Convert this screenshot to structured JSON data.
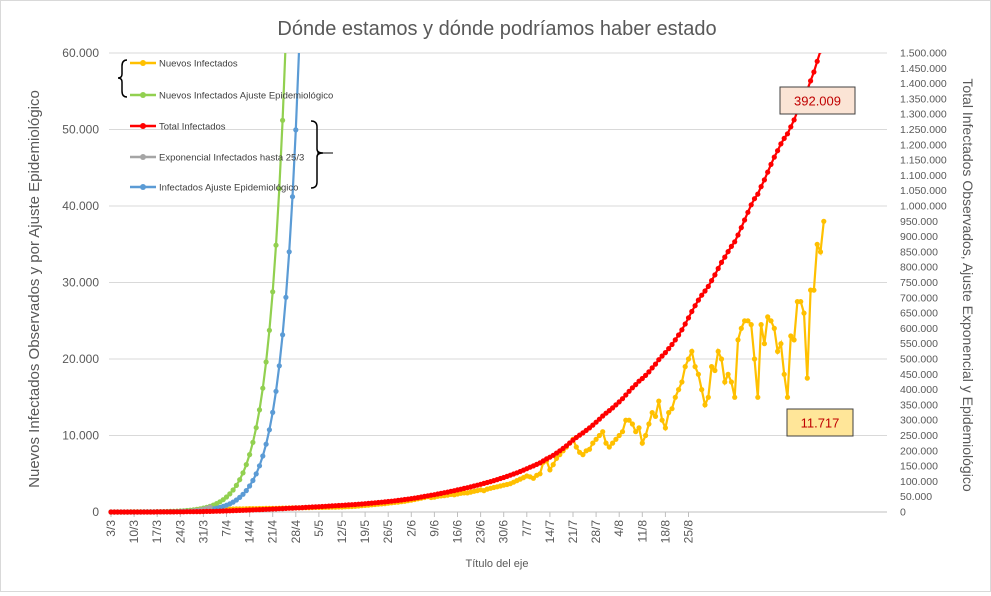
{
  "chart_data": {
    "type": "line",
    "title": "Dónde estamos y dónde podríamos haber estado",
    "xlabel": "Título del eje",
    "ylabel": "Nuevos Infectados Observados y por Ajuste Epidemiológico",
    "y2label": "Total Infectados Observados, Ajuste Exponencial y Epidemiológico",
    "ylim": [
      0,
      60000
    ],
    "y2lim": [
      0,
      1500000
    ],
    "y_ticks": [
      "0",
      "10.000",
      "20.000",
      "30.000",
      "40.000",
      "50.000",
      "60.000"
    ],
    "y2_ticks": [
      "0",
      "50.000",
      "100.000",
      "150.000",
      "200.000",
      "250.000",
      "300.000",
      "350.000",
      "400.000",
      "450.000",
      "500.000",
      "550.000",
      "600.000",
      "650.000",
      "700.000",
      "750.000",
      "800.000",
      "850.000",
      "900.000",
      "950.000",
      "1.000.000",
      "1.050.000",
      "1.100.000",
      "1.150.000",
      "1.200.000",
      "1.250.000",
      "1.300.000",
      "1.350.000",
      "1.400.000",
      "1.450.000",
      "1.500.000"
    ],
    "x_ticks": [
      "3/3",
      "10/3",
      "17/3",
      "24/3",
      "31/3",
      "7/4",
      "14/4",
      "21/4",
      "28/4",
      "5/5",
      "12/5",
      "19/5",
      "26/5",
      "2/6",
      "9/6",
      "16/6",
      "23/6",
      "30/6",
      "7/7",
      "14/7",
      "21/7",
      "28/7",
      "4/8",
      "11/8",
      "18/8",
      "25/8"
    ],
    "grid": "horizontal",
    "legend_position": "top-left",
    "annotations": [
      {
        "text": "392.009",
        "background": "#fbe4d5",
        "color": "#c00000"
      },
      {
        "text": "11.717",
        "background": "#ffe699",
        "color": "#c00000"
      }
    ],
    "series": [
      {
        "name": "Nuevos Infectados",
        "axis": "left",
        "color": "#ffc000",
        "start_day": 0,
        "values": [
          1,
          1,
          2,
          3,
          5,
          6,
          8,
          9,
          12,
          15,
          18,
          22,
          26,
          30,
          35,
          40,
          46,
          52,
          60,
          68,
          77,
          87,
          98,
          110,
          125,
          140,
          158,
          175,
          195,
          215,
          240,
          265,
          290,
          315,
          340,
          360,
          375,
          390,
          400,
          410,
          420,
          430,
          440,
          445,
          450,
          455,
          460,
          465,
          470,
          480,
          490,
          500,
          505,
          510,
          520,
          530,
          540,
          550,
          560,
          570,
          580,
          590,
          600,
          600,
          600,
          610,
          620,
          630,
          640,
          650,
          660,
          680,
          700,
          720,
          740,
          780,
          820,
          860,
          900,
          940,
          980,
          1020,
          1060,
          1100,
          1150,
          1200,
          1250,
          1300,
          1350,
          1400,
          1480,
          1560,
          1640,
          1720,
          1800,
          1900,
          2000,
          1900,
          1950,
          2050,
          2100,
          2150,
          2200,
          2300,
          2250,
          2350,
          2450,
          2500,
          2500,
          2600,
          2700,
          2800,
          2900,
          2800,
          3000,
          3100,
          3200,
          3300,
          3400,
          3500,
          3600,
          3700,
          3900,
          4100,
          4300,
          4500,
          4700,
          4600,
          4400,
          4800,
          5000,
          6500,
          6700,
          5500,
          6200,
          7000,
          7500,
          8000,
          8500,
          9000,
          9500,
          8500,
          7800,
          7500,
          8000,
          8200,
          9000,
          9500,
          10000,
          10500,
          9000,
          8500,
          9000,
          9500,
          10000,
          10500,
          12000,
          12000,
          11500,
          10500,
          11000,
          9000,
          10000,
          11500,
          13000,
          12500,
          14500,
          12000,
          11000,
          13000,
          13500,
          15000,
          16000,
          17000,
          19000,
          20000,
          21000,
          19000,
          18000,
          16000,
          14000,
          15000,
          19000,
          18500,
          21000,
          20000,
          17000,
          18000,
          17000,
          15000,
          22500,
          24000,
          25000,
          25000,
          24500,
          20000,
          15000,
          24500,
          22000,
          25500,
          25000,
          24000,
          21000,
          22000,
          18000,
          15000,
          23000,
          22500,
          27500,
          27500,
          26000,
          17500,
          29000,
          29000,
          35000,
          34000,
          38000
        ]
      },
      {
        "name": "Nuevos Infectados Ajuste Epidemiológico",
        "axis": "left",
        "color": "#92d050",
        "start_day": 0,
        "values": [
          2,
          3,
          3,
          4,
          5,
          6,
          7,
          9,
          11,
          13,
          16,
          19,
          24,
          29,
          35,
          42,
          51,
          62,
          75,
          91,
          110,
          133,
          161,
          195,
          236,
          286,
          347,
          420,
          509,
          617,
          748,
          907,
          1099,
          1332,
          1614,
          1956,
          2370,
          2872,
          3480,
          4217,
          5110,
          6192,
          7503,
          9092,
          11017,
          13350,
          16177,
          19602,
          23752,
          28781,
          34875,
          42260,
          51209,
          62053
        ]
      },
      {
        "name": "Total Infectados",
        "axis": "right",
        "color": "#ff0000",
        "start_day": 0,
        "values": [
          1,
          3,
          5,
          8,
          13,
          20,
          28,
          38,
          50,
          65,
          83,
          105,
          130,
          160,
          195,
          235,
          280,
          333,
          393,
          460,
          537,
          624,
          722,
          832,
          957,
          1097,
          1255,
          1430,
          1625,
          1840,
          2080,
          2345,
          2635,
          2950,
          3290,
          3650,
          4025,
          4415,
          4815,
          5225,
          5645,
          6075,
          6515,
          6960,
          7410,
          7865,
          8325,
          8790,
          9260,
          9740,
          10230,
          10730,
          11235,
          11745,
          12265,
          12795,
          13335,
          13885,
          14445,
          15015,
          15595,
          16185,
          16785,
          17385,
          17985,
          18595,
          19215,
          19845,
          20485,
          21135,
          21795,
          22475,
          23175,
          23895,
          24635,
          25415,
          26235,
          27095,
          27995,
          28935,
          29915,
          30935,
          31995,
          33095,
          34245,
          35445,
          36695,
          37995,
          39345,
          40745,
          42225,
          43785,
          45425,
          47145,
          48945,
          50845,
          52845,
          54745,
          56695,
          58745,
          60845,
          62995,
          65195,
          67495,
          69745,
          72095,
          74545,
          77045,
          79545,
          82145,
          84845,
          87645,
          90545,
          93345,
          96345,
          99445,
          102645,
          105945,
          109345,
          112845,
          116445,
          120145,
          124045,
          128145,
          132445,
          136945,
          141645,
          146245,
          150645,
          155445,
          160445,
          166945,
          173645,
          179145,
          185345,
          192345,
          199845,
          207845,
          216345,
          225345,
          234845,
          243345,
          251145,
          258645,
          266645,
          274845,
          283845,
          293345,
          303345,
          313845,
          322845,
          331345,
          340345,
          349845,
          359845,
          370345,
          382345,
          394345,
          405845,
          416345,
          427345,
          436345,
          446345,
          457845,
          470845,
          483345,
          497845,
          509845,
          520845,
          533845,
          547345,
          562345,
          578345,
          595345,
          614345,
          634345,
          655345,
          674345,
          692345,
          708345,
          722345,
          737345,
          756345,
          774845,
          795845,
          815845,
          832845,
          850845,
          867845,
          882845,
          905345,
          929345,
          954345,
          979345,
          1003845,
          1023845,
          1038845,
          1063345,
          1085345,
          1110845,
          1135845,
          1159845,
          1180845,
          1202845,
          1220845,
          1235845,
          1258845,
          1281345,
          1308845,
          1336345,
          1362345,
          1379845,
          1408845,
          1437845,
          1472845,
          1506845,
          1544845
        ]
      },
      {
        "name": "Exponencial Infectados hasta 25/3",
        "axis": "right",
        "color": "#a5a5a5",
        "start_day": 0,
        "values": [
          1,
          2,
          3,
          5,
          8,
          12,
          17,
          24,
          33,
          45,
          60,
          80,
          107,
          142,
          188,
          249,
          329,
          435,
          574,
          758,
          1001,
          1321,
          1743,
          2300,
          3035,
          4004,
          5282,
          6968,
          9192,
          12125,
          15994
        ]
      },
      {
        "name": "Infectados Ajuste Epidemiológico",
        "axis": "left",
        "color": "#5b9bd5",
        "start_day": 0,
        "values": [
          1,
          1,
          1,
          2,
          2,
          3,
          3,
          4,
          5,
          6,
          7,
          9,
          11,
          13,
          16,
          19,
          23,
          28,
          34,
          41,
          50,
          60,
          73,
          88,
          107,
          130,
          157,
          190,
          230,
          279,
          338,
          410,
          497,
          602,
          730,
          884,
          1072,
          1299,
          1574,
          1907,
          2311,
          2800,
          3393,
          4112,
          4983,
          6038,
          7316,
          8866,
          10743,
          13018,
          15775,
          19116,
          23164,
          28069,
          34013,
          41216,
          49944,
          60520
        ]
      }
    ]
  }
}
